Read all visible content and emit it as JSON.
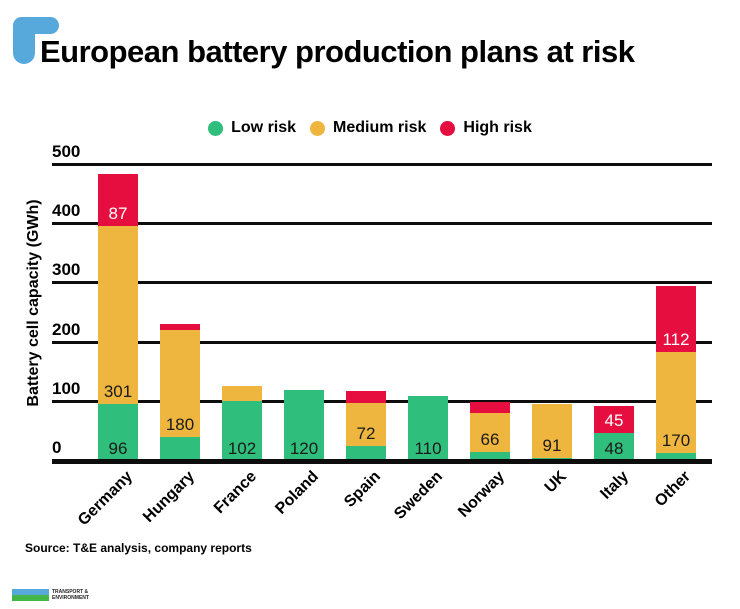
{
  "header": {
    "title": "European battery production plans at risk"
  },
  "legend": [
    {
      "label": "Low risk",
      "color": "#2FBE7B"
    },
    {
      "label": "Medium risk",
      "color": "#EFB63F"
    },
    {
      "label": "High risk",
      "color": "#E60E3E"
    }
  ],
  "colors": {
    "low": "#2FBE7B",
    "medium": "#EFB63F",
    "high": "#E60E3E",
    "accent_blue": "#57A9DC",
    "logo_green": "#45B649",
    "axis": "#0d0d0d"
  },
  "source": {
    "label": "Source:",
    "text": " T&E analysis, company reports"
  },
  "footer_logo": {
    "text": "TRANSPORT & ENVIRONMENT"
  },
  "chart_data": {
    "type": "bar",
    "stacked": true,
    "ylabel": "Battery cell capacity (GWh)",
    "ylim": [
      0,
      500
    ],
    "yticks": [
      0,
      100,
      200,
      300,
      400,
      500
    ],
    "grid": "horizontal-black-lines, tick labels above lines",
    "legend_position": "top-center",
    "categories": [
      "Germany",
      "Hungary",
      "France",
      "Poland",
      "Spain",
      "Sweden",
      "Norway",
      "UK",
      "Italy",
      "Other"
    ],
    "series": [
      {
        "name": "Low risk",
        "color_key": "low",
        "values": [
          96,
          40,
          102,
          120,
          25,
          110,
          15,
          5,
          48,
          13
        ],
        "labels": [
          96,
          null,
          102,
          120,
          null,
          110,
          null,
          null,
          48,
          null
        ]
      },
      {
        "name": "Medium risk",
        "color_key": "medium",
        "values": [
          301,
          180,
          25,
          0,
          72,
          0,
          66,
          91,
          0,
          170
        ],
        "labels": [
          301,
          180,
          null,
          null,
          72,
          null,
          66,
          91,
          null,
          170
        ]
      },
      {
        "name": "High risk",
        "color_key": "high",
        "values": [
          87,
          10,
          0,
          0,
          20,
          0,
          18,
          0,
          45,
          112
        ],
        "labels": [
          87,
          null,
          null,
          null,
          null,
          null,
          null,
          null,
          45,
          112
        ]
      }
    ]
  }
}
